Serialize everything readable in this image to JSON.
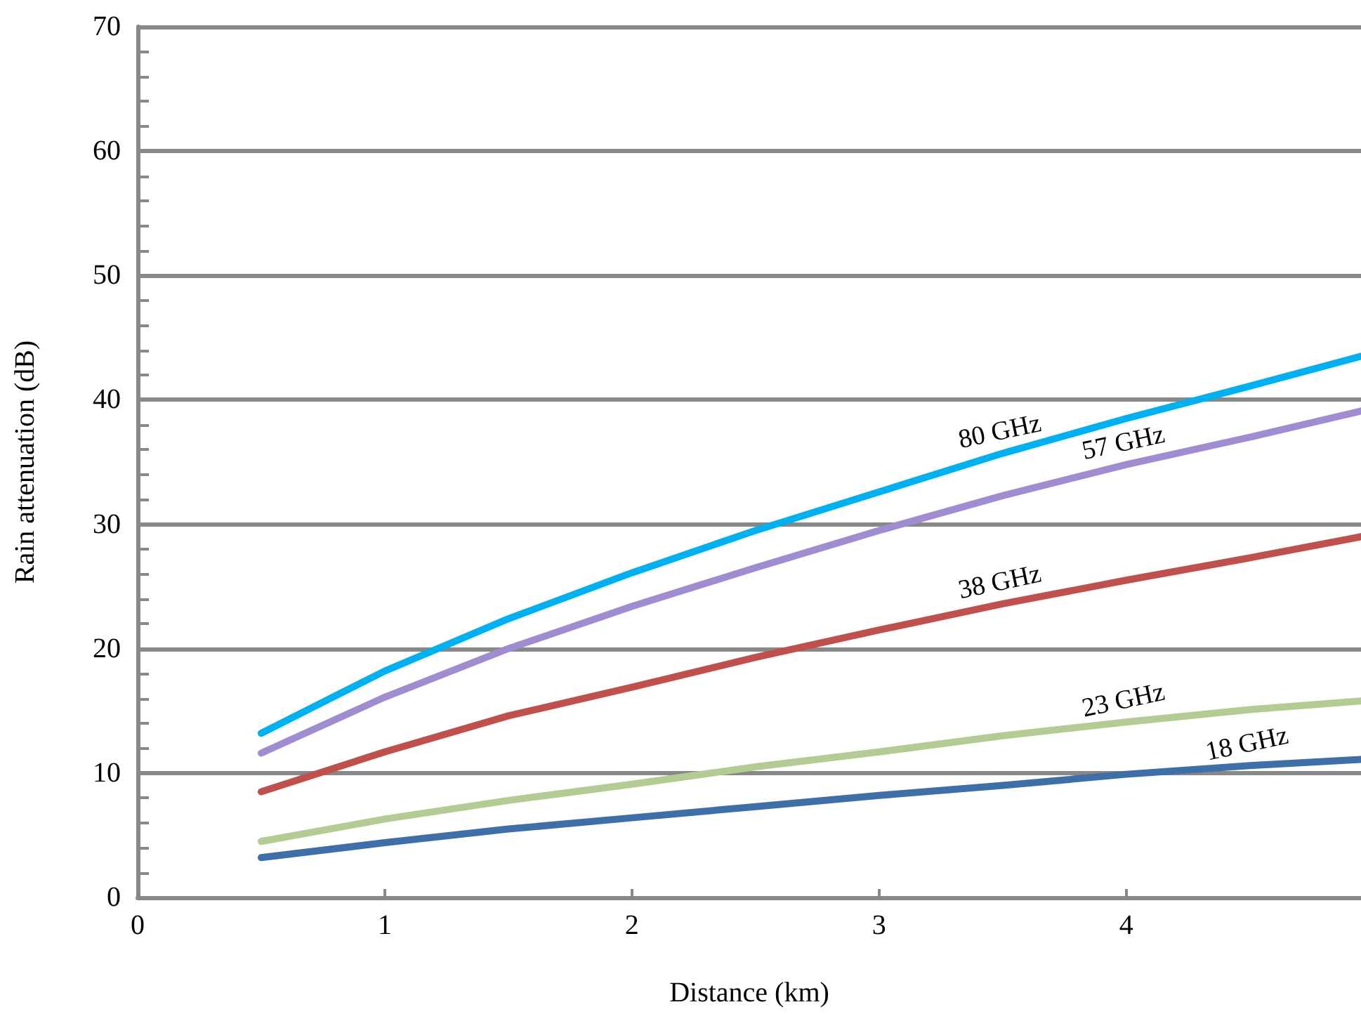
{
  "chart_data": {
    "type": "line",
    "xlabel": "Distance (km)",
    "ylabel": "Rain attenuation (dB)",
    "x": [
      0.5,
      1,
      1.5,
      2,
      2.5,
      3,
      3.5,
      4,
      4.5,
      4.95
    ],
    "xlim": [
      0,
      4.95
    ],
    "xticks": [
      0,
      1,
      2,
      3,
      4
    ],
    "ylim": [
      0,
      70
    ],
    "yticks": [
      0,
      10,
      20,
      30,
      40,
      50,
      60,
      70
    ],
    "grid": "y",
    "marker": "none",
    "line_style": "solid",
    "legend": false,
    "series": [
      {
        "name": "80 GHz",
        "color": "#00b0f0",
        "values": [
          13.2,
          18.2,
          22.4,
          26.1,
          29.5,
          32.6,
          35.7,
          38.5,
          41.1,
          43.5
        ]
      },
      {
        "name": "57 GHz",
        "color": "#a08cd0",
        "values": [
          11.6,
          16.1,
          20.0,
          23.4,
          26.5,
          29.5,
          32.3,
          34.8,
          37.0,
          39.1
        ]
      },
      {
        "name": "38 GHz",
        "color": "#c0504d",
        "values": [
          8.5,
          11.7,
          14.6,
          16.9,
          19.3,
          21.5,
          23.6,
          25.5,
          27.3,
          29.0
        ]
      },
      {
        "name": "23 GHz",
        "color": "#b3cc94",
        "values": [
          4.5,
          6.3,
          7.8,
          9.1,
          10.5,
          11.7,
          13.0,
          14.1,
          15.1,
          15.8
        ]
      },
      {
        "name": "18 GHz",
        "color": "#3f6fa8",
        "values": [
          3.2,
          4.4,
          5.5,
          6.4,
          7.3,
          8.2,
          9.0,
          9.9,
          10.6,
          11.1
        ]
      }
    ]
  }
}
